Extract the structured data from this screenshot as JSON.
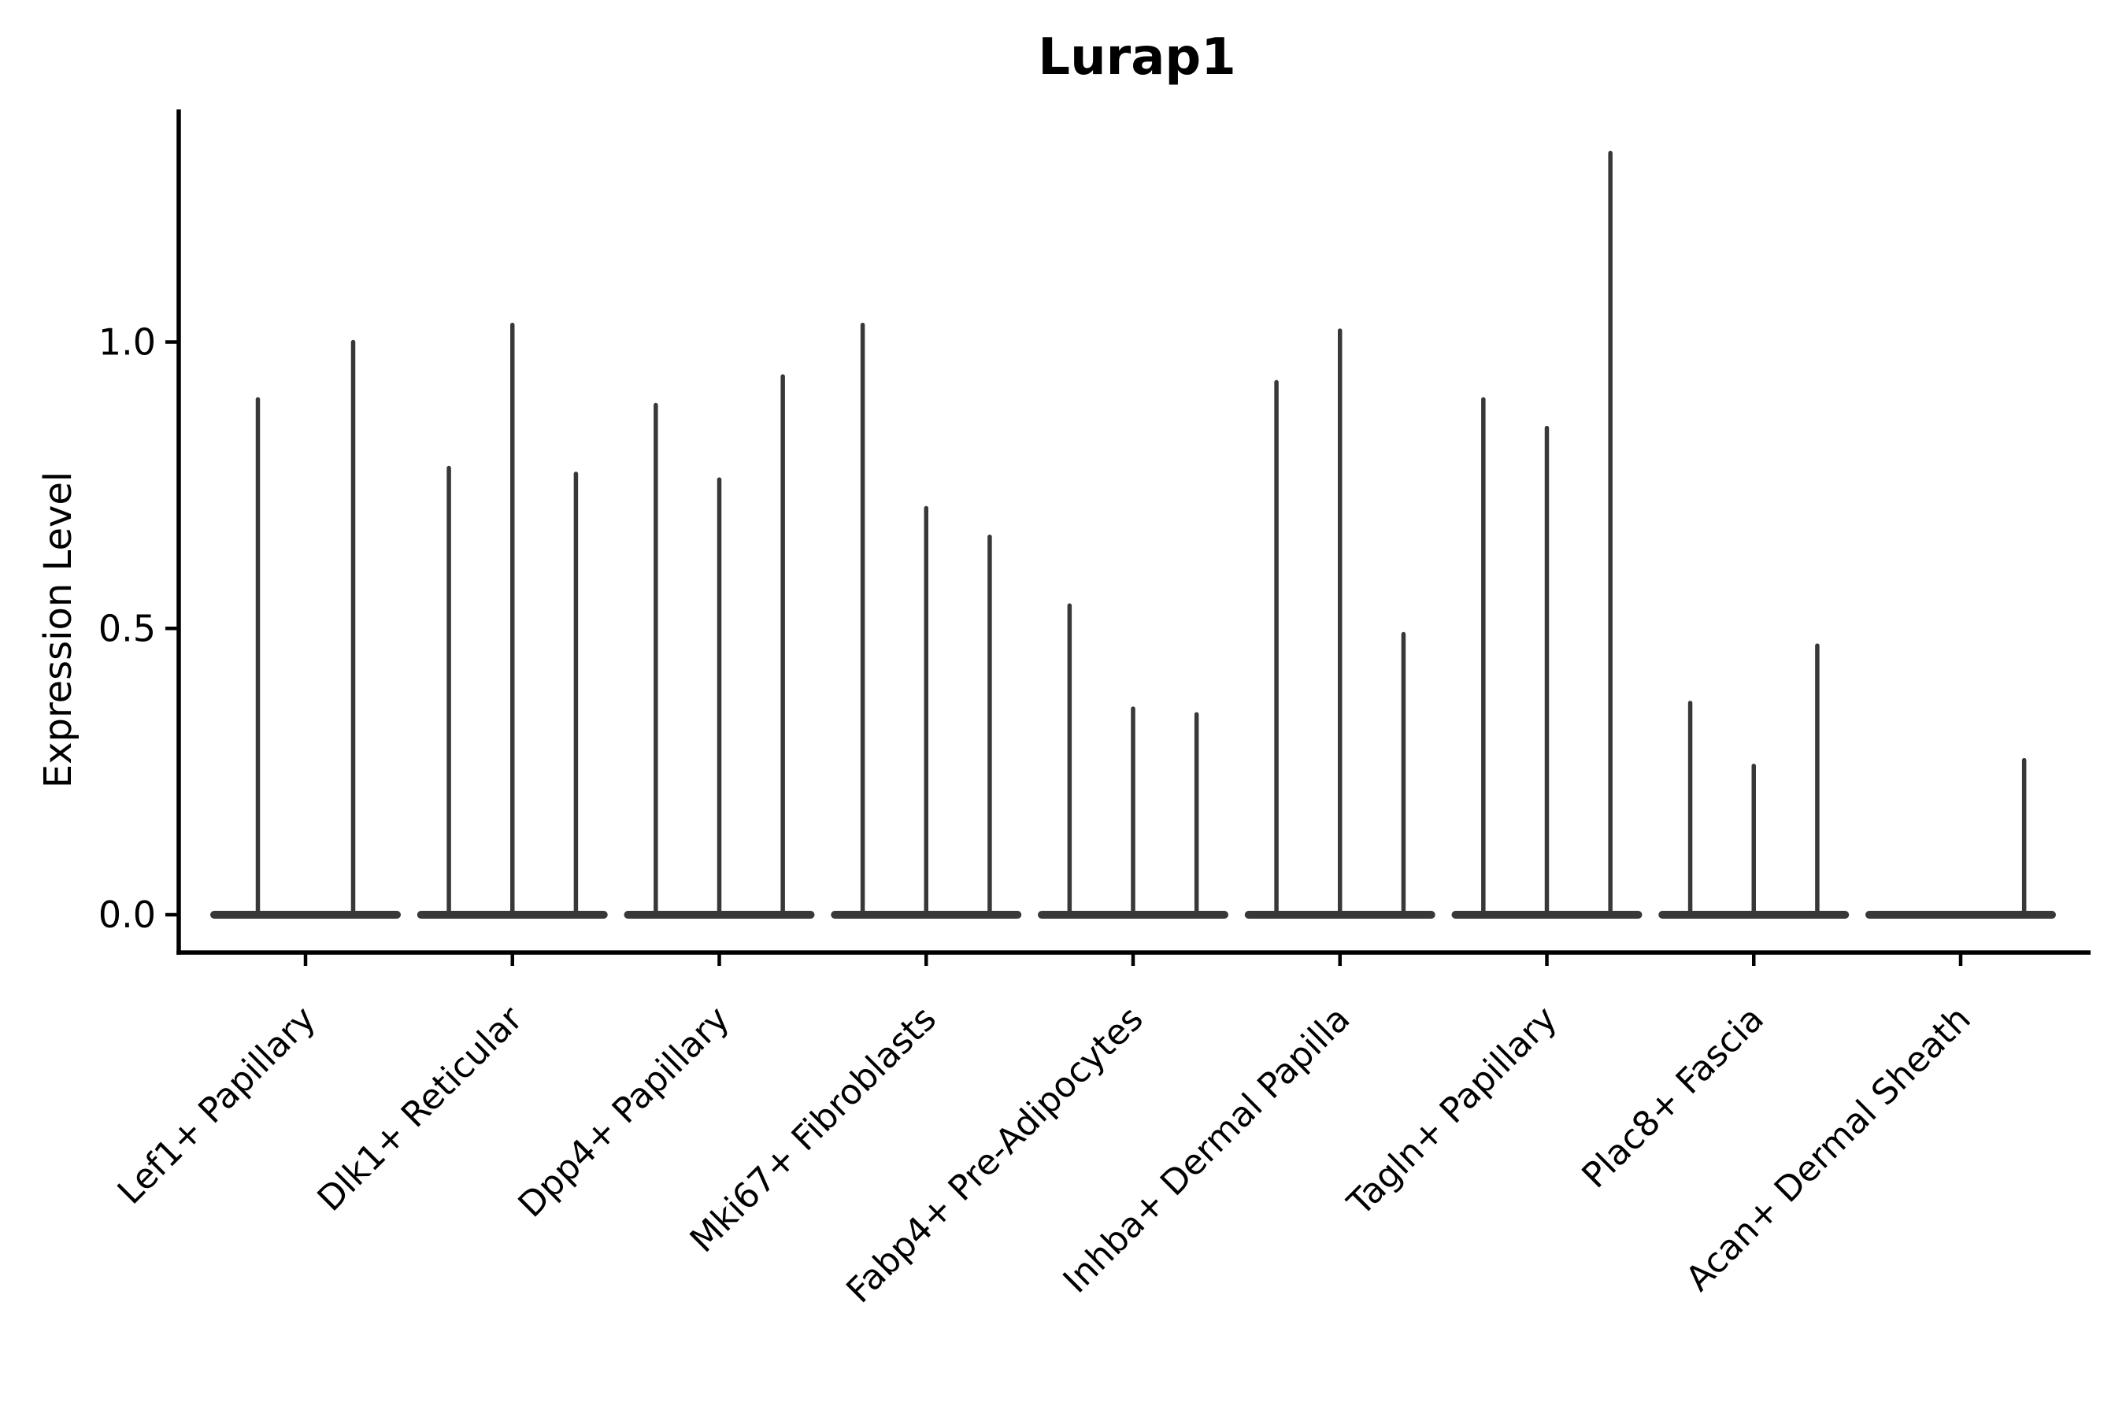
{
  "chart_data": {
    "type": "violin",
    "title": "Lurap1",
    "ylabel": "Expression Level",
    "xlabel": "",
    "legend": false,
    "grid": false,
    "background": "#ffffff",
    "ylim": [
      -0.066,
      1.41
    ],
    "ytick_values": [
      0.0,
      0.5,
      1.0
    ],
    "ytick_labels": [
      "0.0",
      "0.5",
      "1.0"
    ],
    "categories": [
      "Lef1+ Papillary",
      "Dlk1+ Reticular",
      "Dpp4+ Papillary",
      "Mki67+ Fibroblasts",
      "Fabp4+ Pre-Adipocytes",
      "Inhba+ Dermal Papilla",
      "Tagln+ Papillary",
      "Plac8+ Fascia",
      "Acan+ Dermal Sheath"
    ],
    "groups": [
      {
        "category": "Lef1+ Papillary",
        "violin_maxima": [
          0.9,
          1.0
        ]
      },
      {
        "category": "Dlk1+ Reticular",
        "violin_maxima": [
          0.78,
          1.03,
          0.77
        ]
      },
      {
        "category": "Dpp4+ Papillary",
        "violin_maxima": [
          0.89,
          0.76,
          0.94
        ]
      },
      {
        "category": "Mki67+ Fibroblasts",
        "violin_maxima": [
          1.03,
          0.71,
          0.66
        ]
      },
      {
        "category": "Fabp4+ Pre-Adipocytes",
        "violin_maxima": [
          0.54,
          0.36,
          0.35
        ]
      },
      {
        "category": "Inhba+ Dermal Papilla",
        "violin_maxima": [
          0.93,
          1.02,
          0.49
        ]
      },
      {
        "category": "Tagln+ Papillary",
        "violin_maxima": [
          0.9,
          0.85,
          1.33
        ]
      },
      {
        "category": "Plac8+ Fascia",
        "violin_maxima": [
          0.37,
          0.26,
          0.47
        ]
      },
      {
        "category": "Acan+ Dermal Sheath",
        "violin_maxima": [
          0.0,
          0.0,
          0.27
        ]
      }
    ],
    "colors": {
      "violin": "#383838",
      "axis": "#000000",
      "text": "#000000",
      "background": "#ffffff"
    }
  }
}
